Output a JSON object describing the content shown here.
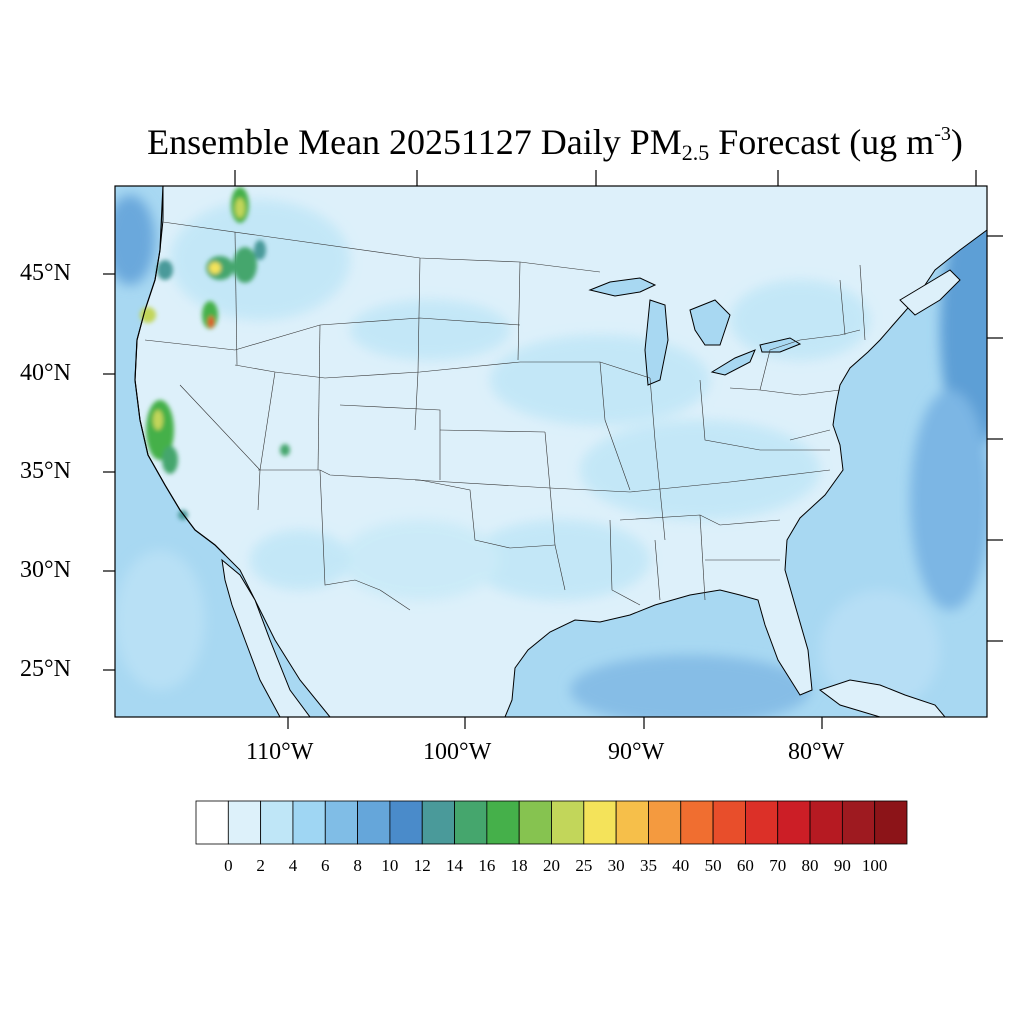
{
  "title": {
    "main": "Ensemble Mean 20251127 Daily PM",
    "subscript": "2.5",
    "after": " Forecast (ug m",
    "superscript": "-3",
    "close": ")"
  },
  "map": {
    "lat_labels": [
      "45°N",
      "40°N",
      "35°N",
      "30°N",
      "25°N"
    ],
    "lon_labels": [
      "110°W",
      "100°W",
      "90°W",
      "80°W"
    ],
    "ocean_color": "#a8d8f2",
    "land_color": "#ddf0fa"
  },
  "colorbar": {
    "labels": [
      "0",
      "2",
      "4",
      "6",
      "8",
      "10",
      "12",
      "14",
      "16",
      "18",
      "20",
      "25",
      "30",
      "35",
      "40",
      "50",
      "60",
      "70",
      "80",
      "90",
      "100"
    ],
    "colors": [
      "#ffffff",
      "#ddf1fa",
      "#bfe6f7",
      "#9fd6f3",
      "#80bde6",
      "#65a6da",
      "#4a8bca",
      "#4a9a9a",
      "#45a66d",
      "#45b04a",
      "#86c350",
      "#c2d65a",
      "#f4e35a",
      "#f6bf4a",
      "#f49a3f",
      "#f06e30",
      "#e84e2b",
      "#dc3028",
      "#cc1e26",
      "#b61a22",
      "#9e1a20",
      "#8c1418"
    ]
  }
}
